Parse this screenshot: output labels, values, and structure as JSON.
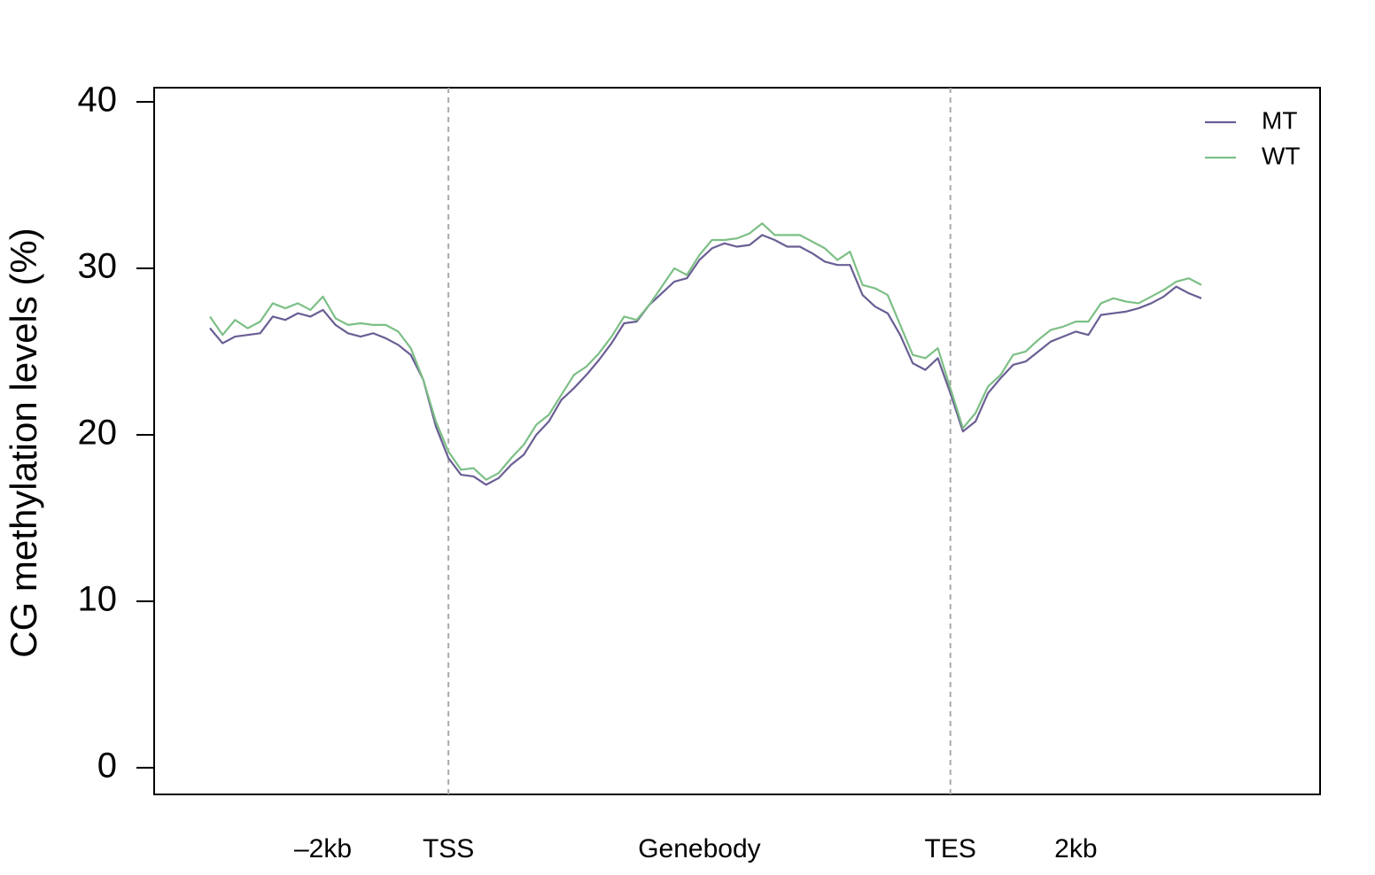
{
  "chart_data": {
    "type": "line",
    "ylabel": "CG methylation levels (%)",
    "x": [
      1,
      2,
      3,
      4,
      5,
      6,
      7,
      8,
      9,
      10,
      11,
      12,
      13,
      14,
      15,
      16,
      17,
      18,
      19,
      20,
      21,
      22,
      23,
      24,
      25,
      26,
      27,
      28,
      29,
      30,
      31,
      32,
      33,
      34,
      35,
      36,
      37,
      38,
      39,
      40,
      41,
      42,
      43,
      44,
      45,
      46,
      47,
      48,
      49,
      50,
      51,
      52,
      53,
      54,
      55,
      56,
      57,
      58,
      59,
      60,
      61,
      62,
      63,
      64,
      65,
      66,
      67,
      68,
      69,
      70,
      71,
      72,
      73,
      74,
      75,
      76,
      77,
      78,
      79,
      80
    ],
    "series": [
      {
        "name": "MT",
        "color": "#6a5e94",
        "values": [
          26.4,
          25.5,
          25.9,
          26.0,
          26.1,
          27.1,
          26.9,
          27.3,
          27.1,
          27.5,
          26.6,
          26.1,
          25.9,
          26.1,
          25.8,
          25.4,
          24.8,
          23.3,
          20.5,
          18.6,
          17.6,
          17.5,
          17.0,
          17.4,
          18.2,
          18.8,
          20.0,
          20.8,
          22.1,
          22.8,
          23.6,
          24.5,
          25.5,
          26.7,
          26.8,
          27.8,
          28.5,
          29.2,
          29.4,
          30.5,
          31.2,
          31.5,
          31.3,
          31.4,
          32.0,
          31.7,
          31.3,
          31.3,
          30.9,
          30.4,
          30.2,
          30.2,
          28.4,
          27.7,
          27.3,
          26.0,
          24.3,
          23.9,
          24.6,
          22.5,
          20.2,
          20.8,
          22.5,
          23.4,
          24.2,
          24.4,
          25.0,
          25.6,
          25.9,
          26.2,
          26.0,
          27.2,
          27.3,
          27.4,
          27.6,
          27.9,
          28.3,
          28.9,
          28.5,
          28.2
        ]
      },
      {
        "name": "WT",
        "color": "#7dbf86",
        "values": [
          27.1,
          26.0,
          26.9,
          26.4,
          26.8,
          27.9,
          27.6,
          27.9,
          27.5,
          28.3,
          27.0,
          26.6,
          26.7,
          26.6,
          26.6,
          26.2,
          25.2,
          23.3,
          20.8,
          19.0,
          17.9,
          18.0,
          17.3,
          17.7,
          18.6,
          19.4,
          20.6,
          21.2,
          22.4,
          23.6,
          24.1,
          24.9,
          25.9,
          27.1,
          26.9,
          27.8,
          28.9,
          30.0,
          29.6,
          30.8,
          31.7,
          31.7,
          31.8,
          32.1,
          32.7,
          32.0,
          32.0,
          32.0,
          31.6,
          31.2,
          30.5,
          31.0,
          29.0,
          28.8,
          28.4,
          26.6,
          24.8,
          24.6,
          25.2,
          22.8,
          20.4,
          21.3,
          22.9,
          23.6,
          24.8,
          25.0,
          25.7,
          26.3,
          26.5,
          26.8,
          26.8,
          27.9,
          28.2,
          28.0,
          27.9,
          28.3,
          28.7,
          29.2,
          29.4,
          29.0
        ]
      }
    ],
    "xlim": [
      -3.45,
      89.46
    ],
    "xticks": [
      {
        "value": 10,
        "label": "–2kb"
      },
      {
        "value": 20,
        "label": "TSS"
      },
      {
        "value": 40,
        "label": "Genebody"
      },
      {
        "value": 60,
        "label": "TES"
      },
      {
        "value": 70,
        "label": "2kb"
      }
    ],
    "vlines": [
      20,
      60
    ],
    "ylim": [
      -1.6,
      40.85
    ],
    "yticks": [
      0,
      10,
      20,
      30,
      40
    ],
    "legend": "topright"
  }
}
